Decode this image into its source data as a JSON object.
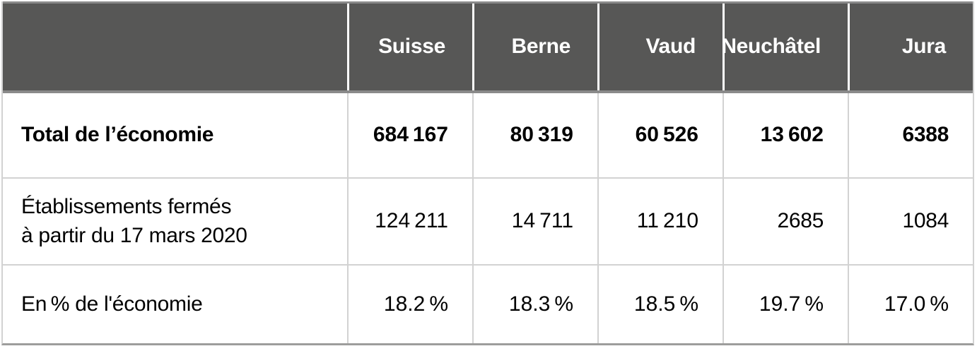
{
  "table": {
    "header": {
      "corner": "",
      "columns": [
        "Suisse",
        "Berne",
        "Vaud",
        "Neuchâtel",
        "Jura"
      ]
    },
    "rows": [
      {
        "label": "Total de l’économie",
        "label_line2": "",
        "values": [
          "684 167",
          "80 319",
          "60 526",
          "13 602",
          "6388"
        ]
      },
      {
        "label": "Établissements fermés",
        "label_line2": "à partir du 17 mars 2020",
        "values": [
          "124 211",
          "14 711",
          "11 210",
          "2685",
          "1084"
        ]
      },
      {
        "label": "En % de l'économie",
        "label_line2": "",
        "values": [
          "18.2 %",
          "18.3 %",
          "18.5 %",
          "19.7 %",
          "17.0 %"
        ]
      }
    ],
    "colors": {
      "header_bg": "#575756",
      "header_text": "#ffffff",
      "grid_line": "#d2d2d2",
      "outer_top": "#8a8a8a",
      "outer_bottom": "#9d9d9c",
      "body_text": "#000000"
    },
    "chart_data": {
      "type": "table",
      "title": "",
      "columns": [
        "",
        "Suisse",
        "Berne",
        "Vaud",
        "Neuchâtel",
        "Jura"
      ],
      "rows": [
        [
          "Total de l’économie",
          684167,
          80319,
          60526,
          13602,
          6388
        ],
        [
          "Établissements fermés à partir du 17 mars 2020",
          124211,
          14711,
          11210,
          2685,
          1084
        ],
        [
          "En % de l'économie",
          "18.2 %",
          "18.3 %",
          "18.5 %",
          "19.7 %",
          "17.0 %"
        ]
      ]
    }
  }
}
